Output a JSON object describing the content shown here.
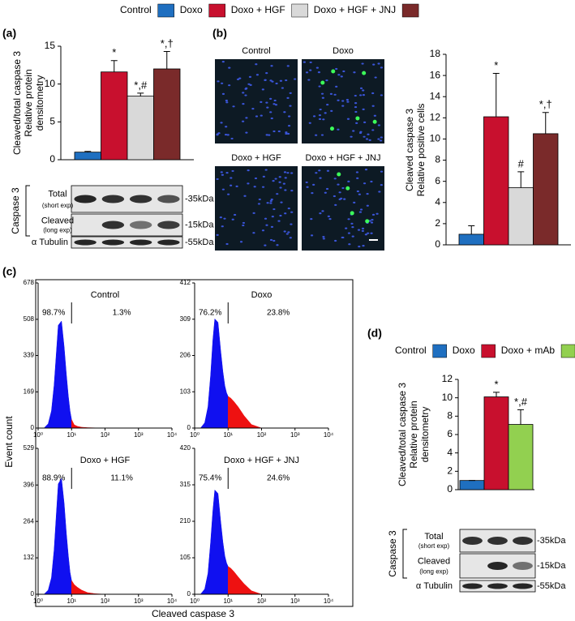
{
  "chart_data": [
    {
      "type": "bar",
      "label": "(a)",
      "categories": [
        "Control",
        "Doxo",
        "Doxo + HGF",
        "Doxo + HGF + JNJ"
      ],
      "colors": [
        "#1f6fc0",
        "#c8102e",
        "#d9d9d9",
        "#7a2a2a"
      ],
      "values": [
        1,
        11.6,
        8.4,
        12
      ],
      "errors": [
        0.1,
        1.5,
        0.4,
        2.3
      ],
      "annotations": [
        null,
        "*",
        "*,#",
        "*,†"
      ],
      "ylabel": [
        "Cleaved/total caspase 3",
        "Relative protein",
        "densitometry"
      ],
      "ylim": [
        0,
        15
      ],
      "yticks": [
        0,
        5,
        10,
        15
      ],
      "blot": {
        "protein": "Caspase 3",
        "rows": [
          {
            "label": "Total",
            "sub": "(short exp)",
            "kda": "-35kDa"
          },
          {
            "label": "Cleaved",
            "sub": "(long exp)",
            "kda": "-15kDa"
          },
          {
            "label": "α Tubulin",
            "kda": "-55kDa"
          }
        ]
      }
    },
    {
      "type": "bar",
      "label": "(b)",
      "image_labels": [
        "Control",
        "Doxo",
        "Doxo + HGF",
        "Doxo + HGF + JNJ"
      ],
      "colors": [
        "#1f6fc0",
        "#c8102e",
        "#d9d9d9",
        "#7a2a2a"
      ],
      "values": [
        1,
        12.1,
        5.4,
        10.5
      ],
      "errors": [
        0.8,
        4.1,
        1.5,
        2.0
      ],
      "annotations": [
        null,
        "*",
        "#",
        "*,†"
      ],
      "ylabel": [
        "Cleaved caspase 3",
        "Relative positive cells"
      ],
      "ylim": [
        0,
        18
      ],
      "yticks": [
        0,
        2,
        4,
        6,
        8,
        10,
        12,
        14,
        16,
        18
      ]
    },
    {
      "type": "area",
      "label": "(c)",
      "xlabel": "Cleaved caspase 3",
      "ylabel": "Event count",
      "log_x": true,
      "xlim": [
        1,
        10000
      ],
      "xticks": [
        {
          "value": 1,
          "label": "10⁰"
        },
        {
          "value": 10,
          "label": "10¹"
        },
        {
          "value": 100,
          "label": "10²"
        },
        {
          "value": 1000,
          "label": "10³"
        },
        {
          "value": 10000,
          "label": "10⁴"
        }
      ],
      "gate": 10,
      "colors": [
        "#1010f0",
        "#ee1111"
      ],
      "x": [
        1.5,
        2,
        2.5,
        3,
        3.5,
        4,
        5,
        6,
        7,
        8,
        9,
        10,
        12,
        15,
        20,
        30,
        50,
        100
      ],
      "plots": [
        {
          "title": "Control",
          "annotations": [
            "98.7%",
            "1.3%"
          ],
          "ylim": [
            0,
            678
          ],
          "yticks": [
            0,
            169,
            339,
            508,
            678
          ],
          "values": [
            0,
            20,
            80,
            200,
            350,
            480,
            500,
            380,
            250,
            150,
            80,
            40,
            15,
            8,
            4,
            2,
            1,
            0
          ]
        },
        {
          "title": "Doxo",
          "annotations": [
            "76.2%",
            "23.8%"
          ],
          "ylim": [
            0,
            412
          ],
          "yticks": [
            0,
            103,
            206,
            309,
            412
          ],
          "values": [
            0,
            15,
            60,
            150,
            250,
            310,
            300,
            220,
            160,
            120,
            100,
            90,
            85,
            75,
            60,
            35,
            10,
            0
          ]
        },
        {
          "title": "Doxo + HGF",
          "annotations": [
            "88.9%",
            "11.1%"
          ],
          "ylim": [
            0,
            529
          ],
          "yticks": [
            0,
            132,
            264,
            396,
            529
          ],
          "values": [
            0,
            15,
            60,
            160,
            290,
            400,
            420,
            330,
            220,
            140,
            80,
            50,
            35,
            25,
            15,
            6,
            2,
            0
          ]
        },
        {
          "title": "Doxo + HGF + JNJ",
          "annotations": [
            "75.4%",
            "24.6%"
          ],
          "ylim": [
            0,
            420
          ],
          "yticks": [
            0,
            105,
            210,
            315,
            420
          ],
          "values": [
            0,
            15,
            60,
            150,
            240,
            300,
            290,
            210,
            150,
            110,
            90,
            80,
            75,
            65,
            50,
            30,
            10,
            0
          ]
        }
      ]
    },
    {
      "type": "bar",
      "label": "(d)",
      "categories": [
        "Control",
        "Doxo",
        "Doxo + mAb"
      ],
      "colors": [
        "#1f6fc0",
        "#c8102e",
        "#92d050"
      ],
      "values": [
        1,
        10.1,
        7.1
      ],
      "errors": [
        0,
        0.5,
        1.6
      ],
      "annotations": [
        null,
        "*",
        "*,#"
      ],
      "ylabel": [
        "Cleaved/total caspase 3",
        "Relative protein",
        "densitometry"
      ],
      "ylim": [
        0,
        12
      ],
      "yticks": [
        0,
        2,
        4,
        6,
        8,
        10,
        12
      ],
      "blot": {
        "protein": "Caspase 3",
        "rows": [
          {
            "label": "Total",
            "sub": "(short exp)",
            "kda": "-35kDa"
          },
          {
            "label": "Cleaved",
            "sub": "(long exp)",
            "kda": "-15kDa"
          },
          {
            "label": "α Tubulin",
            "kda": "-55kDa"
          }
        ]
      }
    }
  ]
}
